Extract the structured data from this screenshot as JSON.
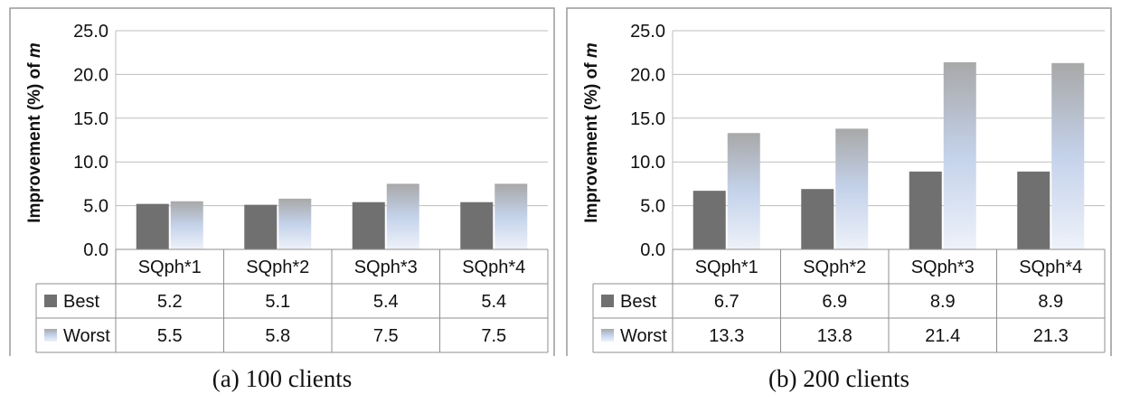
{
  "figure": {
    "ylabel_prefix": "Improvement (%) of ",
    "ylabel_var": "m"
  },
  "colors": {
    "best": "#707070",
    "worst_top": "#a8a8a8",
    "worst_mid": "#c4d2ea",
    "worst_bottom": "#eef2fa"
  },
  "chart_data": [
    {
      "type": "bar",
      "caption": "(a) 100 clients",
      "ylabel": "Improvement (%)of m",
      "ylim": [
        0,
        25
      ],
      "yticks": [
        "0.0",
        "5.0",
        "10.0",
        "15.0",
        "20.0",
        "25.0"
      ],
      "grid": true,
      "categories": [
        "SQph*1",
        "SQph*2",
        "SQph*3",
        "SQph*4"
      ],
      "series": [
        {
          "name": "Best",
          "values": [
            5.2,
            5.1,
            5.4,
            5.4
          ],
          "labels": [
            "5.2",
            "5.1",
            "5.4",
            "5.4"
          ]
        },
        {
          "name": "Worst",
          "values": [
            5.5,
            5.8,
            7.5,
            7.5
          ],
          "labels": [
            "5.5",
            "5.8",
            "7.5",
            "7.5"
          ]
        }
      ]
    },
    {
      "type": "bar",
      "caption": "(b) 200 clients",
      "ylabel": "Improvement (%) of m",
      "ylim": [
        0,
        25
      ],
      "yticks": [
        "0.0",
        "5.0",
        "10.0",
        "15.0",
        "20.0",
        "25.0"
      ],
      "grid": true,
      "categories": [
        "SQph*1",
        "SQph*2",
        "SQph*3",
        "SQph*4"
      ],
      "series": [
        {
          "name": "Best",
          "values": [
            6.7,
            6.9,
            8.9,
            8.9
          ],
          "labels": [
            "6.7",
            "6.9",
            "8.9",
            "8.9"
          ]
        },
        {
          "name": "Worst",
          "values": [
            13.3,
            13.8,
            21.4,
            21.3
          ],
          "labels": [
            "13.3",
            "13.8",
            "21.4",
            "21.3"
          ]
        }
      ]
    }
  ]
}
